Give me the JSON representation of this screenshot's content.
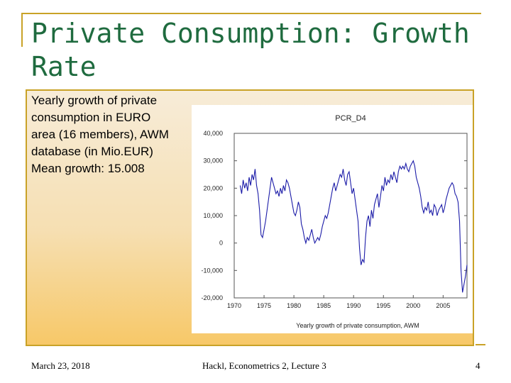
{
  "slide": {
    "title": "Private Consumption: Growth Rate",
    "description_lines": [
      "Yearly growth of private",
      "consumption in EURO",
      "area (16 members), AWM",
      "database (in Mio.EUR)",
      "Mean growth: 15.008"
    ]
  },
  "footer": {
    "date": "March 23, 2018",
    "center": "Hackl, Econometrics 2, Lecture 3",
    "page": "4"
  },
  "chart_data": {
    "type": "line",
    "title": "PCR_D4",
    "xlabel": "Yearly growth of private consumption, AWM",
    "ylabel": "",
    "xlim": [
      1970,
      2009
    ],
    "ylim": [
      -20000,
      40000
    ],
    "x_ticks": [
      "1970",
      "1975",
      "1980",
      "1985",
      "1990",
      "1995",
      "2000",
      "2005"
    ],
    "y_ticks": [
      "40,000",
      "30,000",
      "20,000",
      "10,000",
      "0",
      "-10,000",
      "-20,000"
    ],
    "grid": false,
    "series_color": "#1c1ca8",
    "series": [
      {
        "x": [
          1971.0,
          1971.25,
          1971.5,
          1971.75,
          1972.0,
          1972.25,
          1972.5,
          1972.75,
          1973.0,
          1973.25,
          1973.5,
          1973.75,
          1974.0,
          1974.25,
          1974.5,
          1974.75,
          1975.0,
          1975.25,
          1975.5,
          1975.75,
          1976.0,
          1976.25,
          1976.5,
          1976.75,
          1977.0,
          1977.25,
          1977.5,
          1977.75,
          1978.0,
          1978.25,
          1978.5,
          1978.75,
          1979.0,
          1979.25,
          1979.5,
          1979.75,
          1980.0,
          1980.25,
          1980.5,
          1980.75,
          1981.0,
          1981.25,
          1981.5,
          1981.75,
          1982.0,
          1982.25,
          1982.5,
          1982.75,
          1983.0,
          1983.25,
          1983.5,
          1983.75,
          1984.0,
          1984.25,
          1984.5,
          1984.75,
          1985.0,
          1985.25,
          1985.5,
          1985.75,
          1986.0,
          1986.25,
          1986.5,
          1986.75,
          1987.0,
          1987.25,
          1987.5,
          1987.75,
          1988.0,
          1988.25,
          1988.5,
          1988.75,
          1989.0,
          1989.25,
          1989.5,
          1989.75,
          1990.0,
          1990.25,
          1990.5,
          1990.75,
          1991.0,
          1991.25,
          1991.5,
          1991.75,
          1992.0,
          1992.25,
          1992.5,
          1992.75,
          1993.0,
          1993.25,
          1993.5,
          1993.75,
          1994.0,
          1994.25,
          1994.5,
          1994.75,
          1995.0,
          1995.25,
          1995.5,
          1995.75,
          1996.0,
          1996.25,
          1996.5,
          1996.75,
          1997.0,
          1997.25,
          1997.5,
          1997.75,
          1998.0,
          1998.25,
          1998.5,
          1998.75,
          1999.0,
          1999.25,
          1999.5,
          1999.75,
          2000.0,
          2000.25,
          2000.5,
          2000.75,
          2001.0,
          2001.25,
          2001.5,
          2001.75,
          2002.0,
          2002.25,
          2002.5,
          2002.75,
          2003.0,
          2003.25,
          2003.5,
          2003.75,
          2004.0,
          2004.25,
          2004.5,
          2004.75,
          2005.0,
          2005.25,
          2005.5,
          2005.75,
          2006.0,
          2006.25,
          2006.5,
          2006.75,
          2007.0,
          2007.25,
          2007.5,
          2007.75,
          2008.0,
          2008.25,
          2008.5,
          2008.75,
          2009.0
        ],
        "values": [
          21000,
          18000,
          23000,
          20000,
          22000,
          19000,
          24000,
          21000,
          25000,
          23000,
          27000,
          21000,
          18000,
          12000,
          3000,
          2000,
          5000,
          8000,
          12000,
          16000,
          20000,
          24000,
          22000,
          20000,
          18000,
          19000,
          17000,
          20000,
          18000,
          21000,
          19000,
          23000,
          22000,
          20000,
          17000,
          14000,
          11000,
          10000,
          12000,
          15000,
          13000,
          7000,
          5000,
          2000,
          0,
          2000,
          1000,
          3000,
          5000,
          2000,
          0,
          1000,
          2000,
          1000,
          3000,
          6000,
          8000,
          10000,
          9000,
          11000,
          14000,
          17000,
          20000,
          22000,
          19000,
          21000,
          23000,
          25000,
          24000,
          27000,
          23000,
          21000,
          25000,
          26000,
          22000,
          18000,
          20000,
          16000,
          12000,
          8000,
          -2000,
          -8000,
          -6000,
          -7000,
          2000,
          8000,
          10000,
          6000,
          12000,
          9000,
          14000,
          16000,
          18000,
          13000,
          17000,
          21000,
          19000,
          24000,
          21000,
          23000,
          22000,
          25000,
          23000,
          26000,
          24000,
          22000,
          26000,
          28000,
          27000,
          28000,
          27000,
          29000,
          27000,
          26000,
          28000,
          29000,
          30000,
          28000,
          24000,
          22000,
          20000,
          17000,
          13000,
          11000,
          13000,
          12000,
          15000,
          11000,
          12000,
          10000,
          14000,
          13000,
          10000,
          12000,
          13000,
          14000,
          11000,
          13000,
          16000,
          18000,
          20000,
          21000,
          22000,
          21000,
          18000,
          17000,
          15000,
          8000,
          -10000,
          -18000,
          -15000,
          -12000,
          -8000
        ]
      }
    ]
  }
}
